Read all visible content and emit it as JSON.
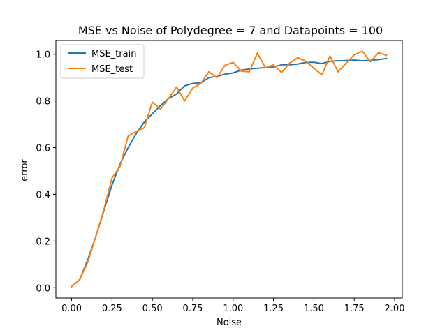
{
  "chart_data": {
    "type": "line",
    "title": "MSE vs Noise of Polydegree = 7 and Datapoints = 100",
    "xlabel": "Noise",
    "ylabel": "error",
    "xlim": [
      -0.0975,
      2.0475
    ],
    "ylim": [
      -0.044,
      1.059
    ],
    "xticks": [
      0.0,
      0.25,
      0.5,
      0.75,
      1.0,
      1.25,
      1.5,
      1.75,
      2.0
    ],
    "xtick_labels": [
      "0.00",
      "0.25",
      "0.50",
      "0.75",
      "1.00",
      "1.25",
      "1.50",
      "1.75",
      "2.00"
    ],
    "yticks": [
      0.0,
      0.2,
      0.4,
      0.6,
      0.8,
      1.0
    ],
    "ytick_labels": [
      "0.0",
      "0.2",
      "0.4",
      "0.6",
      "0.8",
      "1.0"
    ],
    "grid": false,
    "legend_position": "top-left",
    "x": [
      0.0,
      0.05,
      0.1,
      0.15,
      0.2,
      0.25,
      0.3,
      0.35,
      0.4,
      0.45,
      0.5,
      0.55,
      0.6,
      0.65,
      0.7,
      0.75,
      0.8,
      0.85,
      0.9,
      0.95,
      1.0,
      1.05,
      1.1,
      1.15,
      1.2,
      1.25,
      1.3,
      1.35,
      1.4,
      1.45,
      1.5,
      1.55,
      1.6,
      1.65,
      1.7,
      1.75,
      1.8,
      1.85,
      1.9,
      1.95
    ],
    "series": [
      {
        "name": "MSE_train",
        "color": "#1f77b4",
        "values": [
          0.005,
          0.035,
          0.12,
          0.22,
          0.33,
          0.44,
          0.53,
          0.6,
          0.66,
          0.71,
          0.745,
          0.78,
          0.81,
          0.83,
          0.865,
          0.875,
          0.878,
          0.9,
          0.905,
          0.915,
          0.92,
          0.932,
          0.937,
          0.94,
          0.943,
          0.945,
          0.955,
          0.955,
          0.958,
          0.965,
          0.966,
          0.96,
          0.97,
          0.972,
          0.973,
          0.975,
          0.972,
          0.974,
          0.977,
          0.982
        ]
      },
      {
        "name": "MSE_test",
        "color": "#ff7f0e",
        "values": [
          0.005,
          0.035,
          0.11,
          0.22,
          0.335,
          0.47,
          0.52,
          0.65,
          0.67,
          0.685,
          0.795,
          0.765,
          0.81,
          0.86,
          0.8,
          0.855,
          0.875,
          0.925,
          0.9,
          0.953,
          0.965,
          0.928,
          0.925,
          1.005,
          0.942,
          0.955,
          0.922,
          0.962,
          0.985,
          0.97,
          0.94,
          0.912,
          0.993,
          0.925,
          0.962,
          0.998,
          1.013,
          0.968,
          1.007,
          0.995
        ]
      }
    ]
  }
}
